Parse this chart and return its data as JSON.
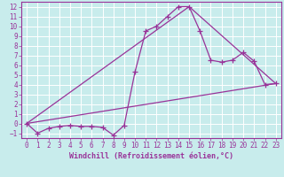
{
  "xlabel": "Windchill (Refroidissement éolien,°C)",
  "bg_color": "#c8ecec",
  "grid_color": "#ffffff",
  "line_color": "#993399",
  "xlim": [
    -0.5,
    23.5
  ],
  "ylim": [
    -1.5,
    12.5
  ],
  "xticks": [
    0,
    1,
    2,
    3,
    4,
    5,
    6,
    7,
    8,
    9,
    10,
    11,
    12,
    13,
    14,
    15,
    16,
    17,
    18,
    19,
    20,
    21,
    22,
    23
  ],
  "yticks": [
    -1,
    0,
    1,
    2,
    3,
    4,
    5,
    6,
    7,
    8,
    9,
    10,
    11,
    12
  ],
  "line1_x": [
    0,
    1,
    2,
    3,
    4,
    5,
    6,
    7,
    8,
    9,
    10,
    11,
    12,
    13,
    14,
    15,
    16,
    17,
    18,
    19,
    20,
    21,
    22,
    23
  ],
  "line1_y": [
    0,
    -1,
    -0.5,
    -0.3,
    -0.2,
    -0.3,
    -0.3,
    -0.4,
    -1.2,
    -0.2,
    5.3,
    9.5,
    10,
    11,
    12,
    12,
    9.5,
    6.5,
    6.3,
    6.5,
    7.3,
    6.4,
    4.0,
    4.1
  ],
  "line2_x": [
    0,
    23
  ],
  "line2_y": [
    0,
    4.1
  ],
  "line3_x": [
    0,
    15,
    23
  ],
  "line3_y": [
    0,
    12,
    4.1
  ],
  "marker_size": 4,
  "linewidth": 0.9,
  "tick_fontsize": 5.5,
  "xlabel_fontsize": 6.0
}
